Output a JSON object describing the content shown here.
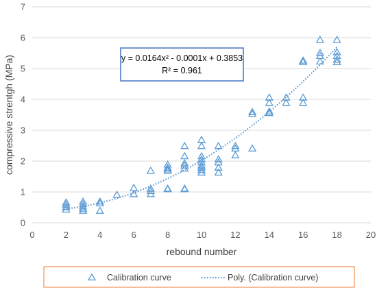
{
  "colors": {
    "series": "#5b9bd5",
    "grid": "#d9d9d9",
    "legend_border": "#ed7d31",
    "equation_border": "#4472c4",
    "text": "#595959"
  },
  "chart_data": {
    "type": "scatter",
    "xlabel": "rebound number",
    "ylabel": "compressive strentgh (MPa)",
    "xlim": [
      0,
      20
    ],
    "ylim": [
      0,
      7
    ],
    "xticks": [
      "0",
      "2",
      "4",
      "6",
      "8",
      "10",
      "12",
      "14",
      "16",
      "18",
      "20"
    ],
    "yticks": [
      "0",
      "1",
      "2",
      "3",
      "4",
      "5",
      "6",
      "7"
    ],
    "grid": "horizontal",
    "legend_position": "bottom",
    "series": [
      {
        "name": "Calibration curve",
        "marker": "triangle-open",
        "points": [
          [
            2,
            0.42
          ],
          [
            2,
            0.5
          ],
          [
            2,
            0.58
          ],
          [
            2,
            0.65
          ],
          [
            3,
            0.38
          ],
          [
            3,
            0.45
          ],
          [
            3,
            0.52
          ],
          [
            3,
            0.6
          ],
          [
            3,
            0.68
          ],
          [
            4,
            0.38
          ],
          [
            4,
            0.62
          ],
          [
            4,
            0.68
          ],
          [
            5,
            0.9
          ],
          [
            6,
            0.92
          ],
          [
            6,
            1.12
          ],
          [
            7,
            0.92
          ],
          [
            7,
            1.02
          ],
          [
            7,
            1.1
          ],
          [
            7,
            1.68
          ],
          [
            8,
            1.08
          ],
          [
            8,
            1.1
          ],
          [
            8,
            1.68
          ],
          [
            8,
            1.72
          ],
          [
            8,
            1.78
          ],
          [
            8,
            1.88
          ],
          [
            9,
            1.08
          ],
          [
            9,
            1.1
          ],
          [
            9,
            1.75
          ],
          [
            9,
            1.85
          ],
          [
            9,
            1.92
          ],
          [
            9,
            2.15
          ],
          [
            9,
            2.48
          ],
          [
            10,
            1.62
          ],
          [
            10,
            1.7
          ],
          [
            10,
            1.78
          ],
          [
            10,
            1.85
          ],
          [
            10,
            1.95
          ],
          [
            10,
            2.05
          ],
          [
            10,
            2.15
          ],
          [
            10,
            2.48
          ],
          [
            10,
            2.68
          ],
          [
            11,
            1.62
          ],
          [
            11,
            1.78
          ],
          [
            11,
            1.95
          ],
          [
            11,
            2.05
          ],
          [
            11,
            2.48
          ],
          [
            12,
            2.18
          ],
          [
            12,
            2.4
          ],
          [
            12,
            2.48
          ],
          [
            13,
            2.4
          ],
          [
            13,
            3.52
          ],
          [
            13,
            3.58
          ],
          [
            14,
            3.55
          ],
          [
            14,
            3.6
          ],
          [
            14,
            3.88
          ],
          [
            14,
            4.05
          ],
          [
            15,
            3.88
          ],
          [
            15,
            4.05
          ],
          [
            16,
            3.88
          ],
          [
            16,
            4.05
          ],
          [
            16,
            5.2
          ],
          [
            16,
            5.25
          ],
          [
            17,
            5.22
          ],
          [
            17,
            5.4
          ],
          [
            17,
            5.5
          ],
          [
            17,
            5.92
          ],
          [
            18,
            5.2
          ],
          [
            18,
            5.28
          ],
          [
            18,
            5.4
          ],
          [
            18,
            5.52
          ],
          [
            18,
            5.92
          ]
        ]
      },
      {
        "name": "Poly. (Calibration curve)",
        "type": "trendline",
        "style": "dotted",
        "coefficients": {
          "a": 0.0164,
          "b": -0.0001,
          "c": 0.3853
        },
        "x_range": [
          2,
          18
        ]
      }
    ],
    "annotation": {
      "equation": "y = 0.0164x² - 0.0001x + 0.3853",
      "r_squared": "R² = 0.961"
    }
  }
}
